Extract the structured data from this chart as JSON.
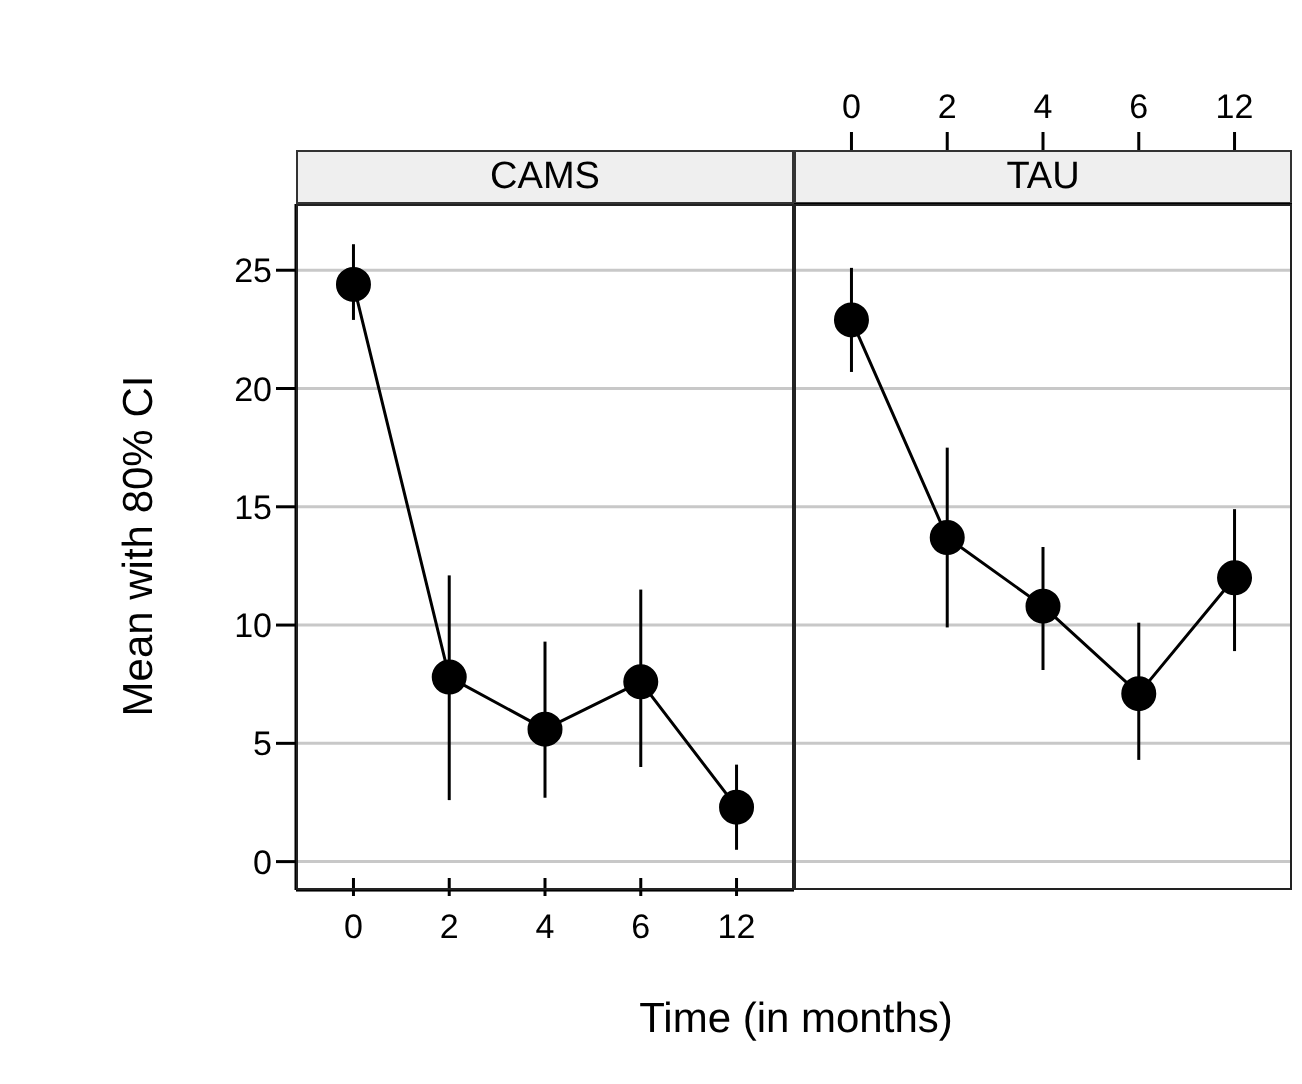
{
  "chart_data": [
    {
      "type": "line",
      "title": "CAMS",
      "ylabel": "Mean with 80% CI",
      "xlabel": "Time (in months)",
      "categories": [
        "0",
        "2",
        "4",
        "6",
        "12"
      ],
      "series": [
        {
          "color": "#000000",
          "values": [
            24.4,
            7.8,
            5.6,
            7.6,
            2.3
          ],
          "errors": [
            [
              22.9,
              26.1
            ],
            [
              2.6,
              12.1
            ],
            [
              2.7,
              9.3
            ],
            [
              4.0,
              11.5
            ],
            [
              0.5,
              4.1
            ]
          ]
        }
      ],
      "ylim": [
        -1.2,
        27.8
      ],
      "yticks": [
        0,
        5,
        10,
        15,
        20,
        25
      ],
      "grid": "y",
      "marker": "circle",
      "line_style": "solid"
    },
    {
      "type": "line",
      "title": "TAU",
      "categories": [
        "0",
        "2",
        "4",
        "6",
        "12"
      ],
      "series": [
        {
          "color": "#000000",
          "values": [
            22.9,
            13.7,
            10.8,
            7.1,
            12.0
          ],
          "errors": [
            [
              20.7,
              25.1
            ],
            [
              9.9,
              17.5
            ],
            [
              8.1,
              13.3
            ],
            [
              4.3,
              10.1
            ],
            [
              8.9,
              14.9
            ]
          ]
        }
      ],
      "ylim": [
        -1.2,
        27.8
      ],
      "yticks": [
        0,
        5,
        10,
        15,
        20,
        25
      ],
      "grid": "y",
      "marker": "circle",
      "line_style": "solid",
      "tick_labels": "x"
    }
  ]
}
